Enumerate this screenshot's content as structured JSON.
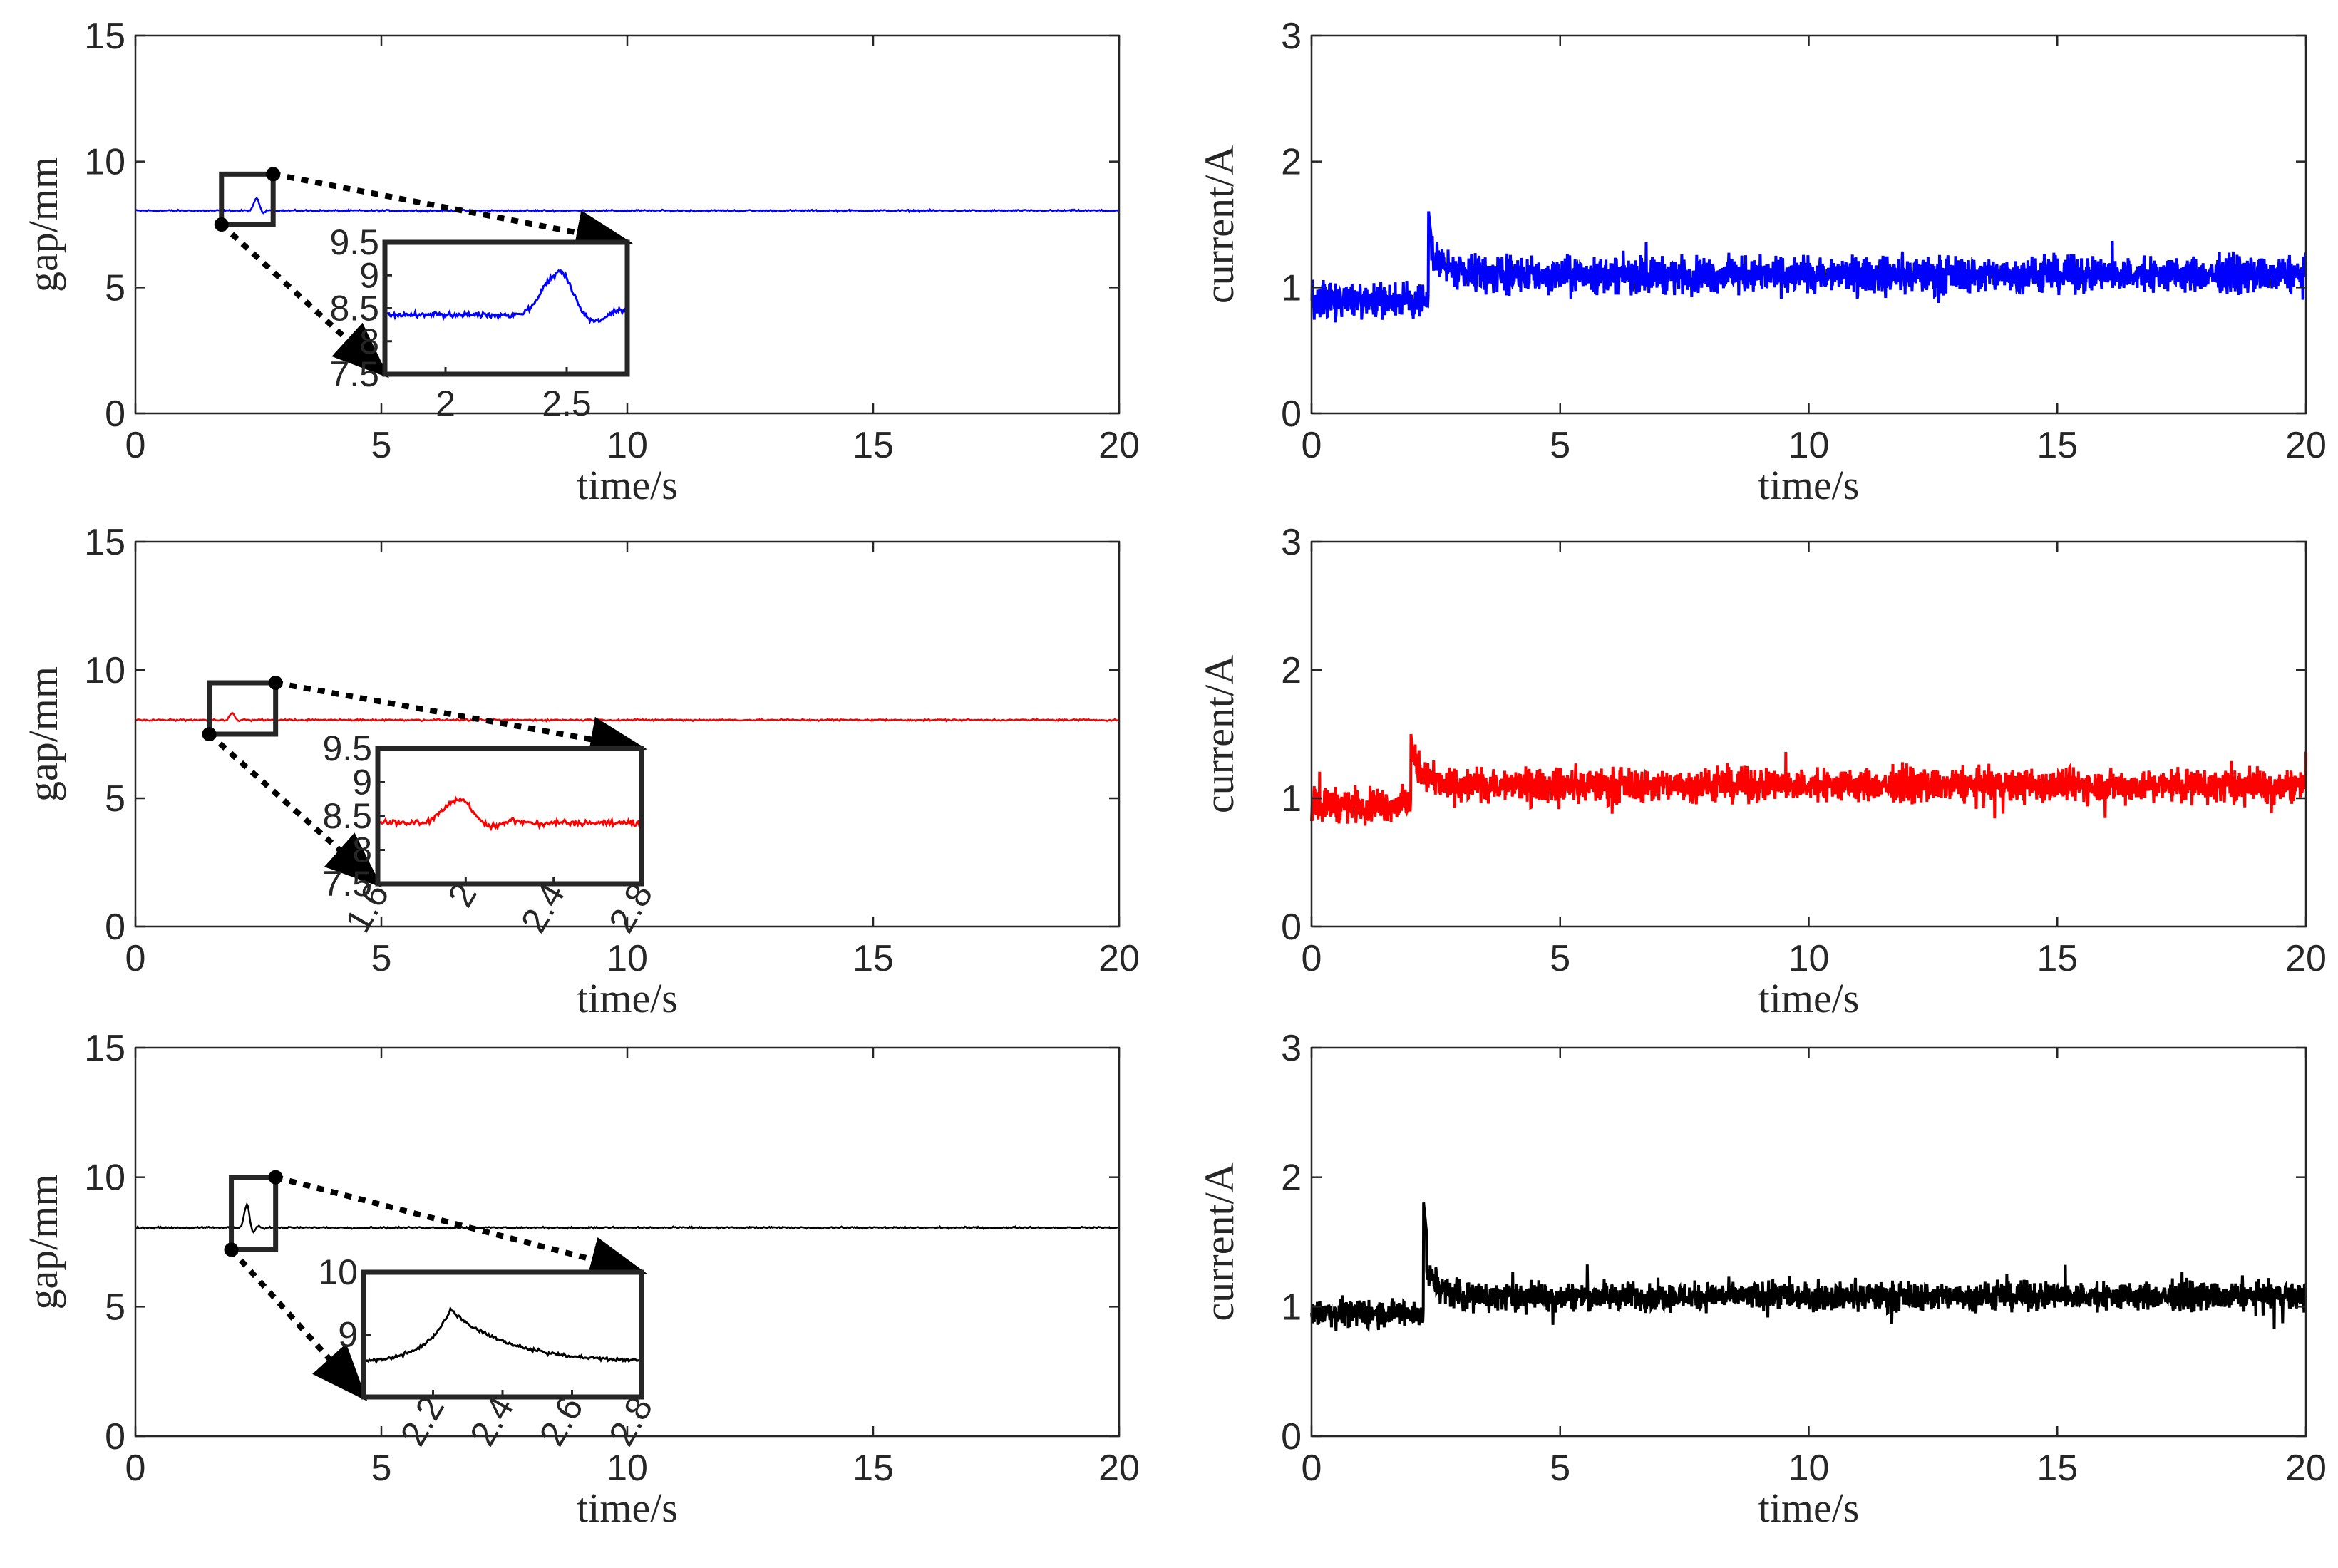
{
  "chart_data": [
    {
      "type": "line",
      "id": "p11",
      "row": 1,
      "col": 1,
      "xlabel": "time/s",
      "ylabel": "gap/mm",
      "xlim": [
        0,
        20
      ],
      "ylim": [
        0,
        15
      ],
      "xticks": [
        "0",
        "5",
        "10",
        "15",
        "20"
      ],
      "yticks": [
        "0",
        "5",
        "10",
        "15"
      ],
      "series": [
        {
          "name": "gap",
          "color": "#0000ff",
          "baseline": 8.05,
          "noise": 0.05,
          "bump_t": 2.45,
          "bump_h": 0.45
        }
      ],
      "zoom_box": {
        "xrange": [
          1.75,
          2.8
        ],
        "yrange": [
          7.5,
          9.5
        ]
      },
      "inset": {
        "xlim": [
          1.75,
          2.75
        ],
        "ylim": [
          7.5,
          9.5
        ],
        "xticks": [
          {
            "v": 2,
            "label": "2"
          },
          {
            "v": 2.5,
            "label": "2.5"
          }
        ],
        "yticks": [
          {
            "v": 9.5,
            "label": "9.5"
          },
          {
            "v": 9,
            "label": "9"
          },
          {
            "v": 8.5,
            "label": "8.5"
          },
          {
            "v": 8,
            "label": "8"
          },
          {
            "v": 7.5,
            "label": "7.5"
          }
        ],
        "xtick_rotate": false
      }
    },
    {
      "type": "line",
      "id": "p12",
      "row": 1,
      "col": 2,
      "xlabel": "time/s",
      "ylabel": "current/A",
      "xlim": [
        0,
        20
      ],
      "ylim": [
        0,
        3
      ],
      "xticks": [
        "0",
        "5",
        "10",
        "15",
        "20"
      ],
      "yticks": [
        "0",
        "1",
        "2",
        "3"
      ],
      "series": [
        {
          "name": "current",
          "color": "#0000ff",
          "baseline_before": 0.9,
          "baseline_after": 1.1,
          "noise": 0.13,
          "spike_t": 2.35,
          "spike_h": 1.62
        }
      ]
    },
    {
      "type": "line",
      "id": "p21",
      "row": 2,
      "col": 1,
      "xlabel": "time/s",
      "ylabel": "gap/mm",
      "xlim": [
        0,
        20
      ],
      "ylim": [
        0,
        15
      ],
      "xticks": [
        "0",
        "5",
        "10",
        "15",
        "20"
      ],
      "yticks": [
        "0",
        "5",
        "10",
        "15"
      ],
      "series": [
        {
          "name": "gap",
          "color": "#ff0000",
          "baseline": 8.05,
          "noise": 0.05,
          "bump_t": 1.95,
          "bump_h": 0.25
        }
      ],
      "zoom_box": {
        "xrange": [
          1.5,
          2.85
        ],
        "yrange": [
          7.5,
          9.5
        ]
      },
      "inset": {
        "xlim": [
          1.6,
          2.8
        ],
        "ylim": [
          7.5,
          9.5
        ],
        "xticks": [
          {
            "v": 1.6,
            "label": "1.6"
          },
          {
            "v": 2,
            "label": "2"
          },
          {
            "v": 2.4,
            "label": "2.4"
          },
          {
            "v": 2.8,
            "label": "2.8"
          }
        ],
        "yticks": [
          {
            "v": 9.5,
            "label": "9.5"
          },
          {
            "v": 9,
            "label": "9"
          },
          {
            "v": 8.5,
            "label": "8.5"
          },
          {
            "v": 8,
            "label": "8"
          },
          {
            "v": 7.5,
            "label": "7.5"
          }
        ],
        "xtick_rotate": true
      }
    },
    {
      "type": "line",
      "id": "p22",
      "row": 2,
      "col": 2,
      "xlabel": "time/s",
      "ylabel": "current/A",
      "xlim": [
        0,
        20
      ],
      "ylim": [
        0,
        3
      ],
      "xticks": [
        "0",
        "5",
        "10",
        "15",
        "20"
      ],
      "yticks": [
        "0",
        "1",
        "2",
        "3"
      ],
      "series": [
        {
          "name": "current",
          "color": "#ff0000",
          "baseline_before": 0.95,
          "baseline_after": 1.1,
          "noise": 0.12,
          "spike_t": 2.0,
          "spike_h": 1.5
        }
      ]
    },
    {
      "type": "line",
      "id": "p31",
      "row": 3,
      "col": 1,
      "xlabel": "time/s",
      "ylabel": "gap/mm",
      "xlim": [
        0,
        20
      ],
      "ylim": [
        0,
        15
      ],
      "xticks": [
        "0",
        "5",
        "10",
        "15",
        "20"
      ],
      "yticks": [
        "0",
        "5",
        "10",
        "15"
      ],
      "series": [
        {
          "name": "gap",
          "color": "#000000",
          "baseline": 8.05,
          "noise": 0.05,
          "bump_t": 2.25,
          "bump_h": 0.8
        }
      ],
      "zoom_box": {
        "xrange": [
          1.95,
          2.85
        ],
        "yrange": [
          7.2,
          10.0
        ]
      },
      "inset": {
        "xlim": [
          2.0,
          2.8
        ],
        "ylim": [
          8,
          10
        ],
        "xticks": [
          {
            "v": 2.2,
            "label": "2.2"
          },
          {
            "v": 2.4,
            "label": "2.4"
          },
          {
            "v": 2.6,
            "label": "2.6"
          },
          {
            "v": 2.8,
            "label": "2.8"
          }
        ],
        "yticks": [
          {
            "v": 10,
            "label": "10"
          },
          {
            "v": 9,
            "label": "9"
          }
        ],
        "xtick_rotate": true
      }
    },
    {
      "type": "line",
      "id": "p32",
      "row": 3,
      "col": 2,
      "xlabel": "time/s",
      "ylabel": "current/A",
      "xlim": [
        0,
        20
      ],
      "ylim": [
        0,
        3
      ],
      "xticks": [
        "0",
        "5",
        "10",
        "15",
        "20"
      ],
      "yticks": [
        "0",
        "1",
        "2",
        "3"
      ],
      "series": [
        {
          "name": "current",
          "color": "#000000",
          "baseline_before": 0.95,
          "baseline_after": 1.08,
          "noise": 0.1,
          "spike_t": 2.25,
          "spike_h": 1.82
        }
      ]
    }
  ]
}
